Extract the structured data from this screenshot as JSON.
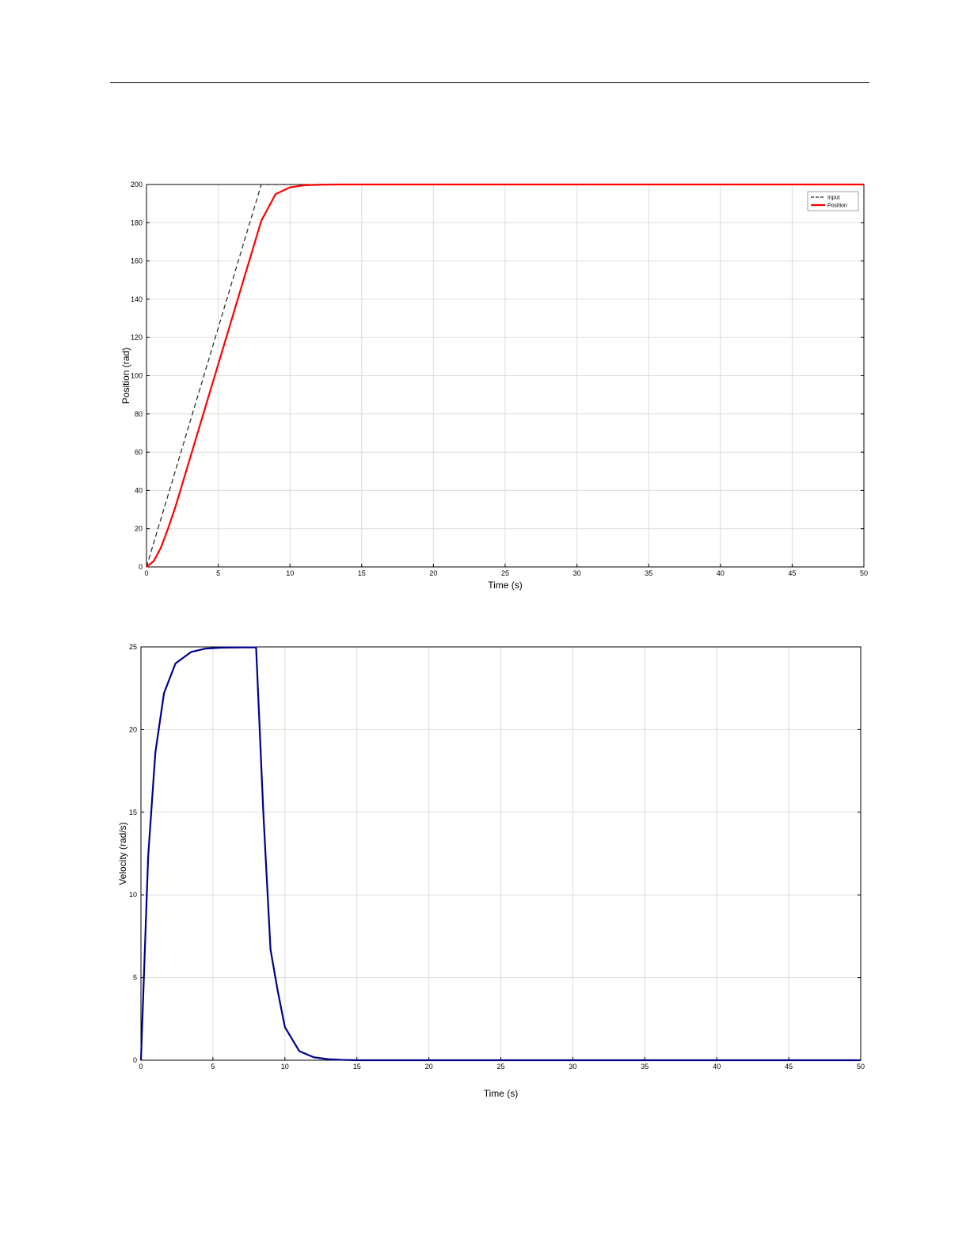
{
  "chart_data": [
    {
      "type": "line",
      "title": "",
      "xlabel": "Time (s)",
      "ylabel": "Position (rad)",
      "xlim": [
        0,
        50
      ],
      "ylim": [
        0,
        200
      ],
      "xticks": [
        0,
        5,
        10,
        15,
        20,
        25,
        30,
        35,
        40,
        45,
        50
      ],
      "yticks": [
        0,
        20,
        40,
        60,
        80,
        100,
        120,
        140,
        160,
        180,
        200
      ],
      "grid": true,
      "legend_position": "top-right",
      "series": [
        {
          "name": "Input",
          "color": "#222222",
          "style": "dashed",
          "x": [
            0,
            8,
            50
          ],
          "y": [
            0,
            200,
            200
          ]
        },
        {
          "name": "Position",
          "color": "#ff0000",
          "style": "solid",
          "x": [
            0,
            0.5,
            1,
            1.5,
            2,
            3,
            4,
            5,
            6,
            7,
            8,
            9,
            10,
            11,
            12,
            13,
            15,
            20,
            30,
            40,
            50
          ],
          "y": [
            0,
            3,
            10,
            20,
            31,
            56,
            81,
            106,
            131,
            156,
            181,
            195,
            198.5,
            199.6,
            199.9,
            200,
            200,
            200,
            200,
            200,
            200
          ]
        }
      ]
    },
    {
      "type": "line",
      "title": "",
      "xlabel": "Time (s)",
      "ylabel": "Velocity (rad/s)",
      "xlim": [
        0,
        50
      ],
      "ylim": [
        0,
        25
      ],
      "xticks": [
        0,
        5,
        10,
        15,
        20,
        25,
        30,
        35,
        40,
        45,
        50
      ],
      "yticks": [
        0,
        5,
        10,
        15,
        20,
        25
      ],
      "grid": true,
      "series": [
        {
          "color": "#00008b",
          "style": "solid",
          "x": [
            0,
            0.5,
            1,
            1.6,
            2.4,
            3.5,
            4.5,
            5.5,
            7,
            8,
            8.5,
            9,
            9.5,
            10,
            11,
            12,
            13,
            14,
            15,
            20,
            30,
            40,
            50
          ],
          "y": [
            0,
            12.3,
            18.6,
            22.2,
            24.0,
            24.7,
            24.9,
            24.95,
            24.97,
            24.97,
            15.0,
            6.7,
            4.2,
            2.0,
            0.55,
            0.18,
            0.06,
            0.02,
            0.0,
            0.0,
            0.0,
            0.0,
            0.0
          ]
        }
      ]
    }
  ]
}
